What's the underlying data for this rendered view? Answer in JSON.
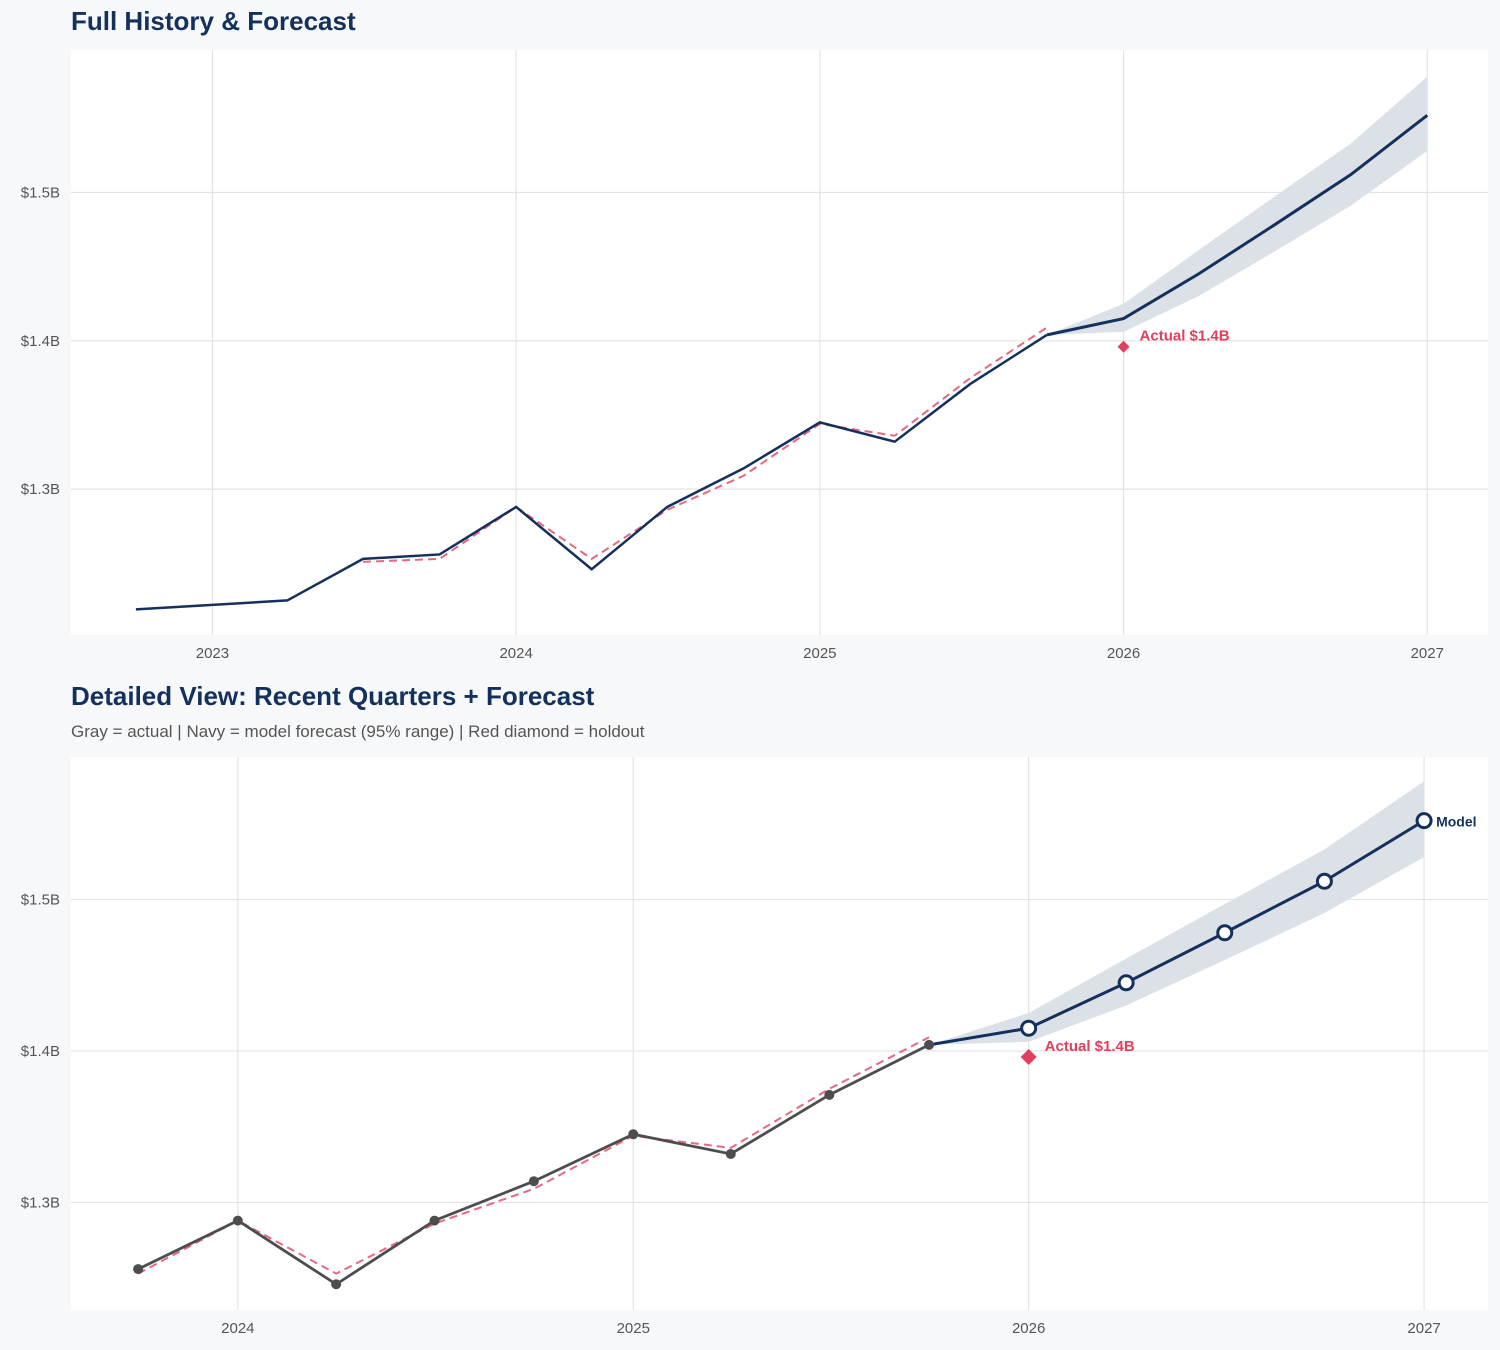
{
  "chart_data": [
    {
      "type": "line",
      "title": "Full History & Forecast",
      "subtitle": "",
      "xlim": [
        "2022-07-15",
        "2027-03-15"
      ],
      "ylim": [
        1.2017,
        1.596
      ],
      "x_ticks": [
        "2023",
        "2024",
        "2025",
        "2026",
        "2027"
      ],
      "y_ticks": [
        {
          "value": 1.3,
          "label": "$1.3B"
        },
        {
          "value": 1.4,
          "label": "$1.4B"
        },
        {
          "value": 1.5,
          "label": "$1.5B"
        }
      ],
      "grid": true,
      "actual_start": "2022-10-01",
      "actual_color": "#13315c",
      "actual_markers": false,
      "forecast_markers": false,
      "holdout_label": "Actual $1.4B",
      "model_label": ""
    },
    {
      "type": "line",
      "title": "Detailed View: Recent Quarters + Forecast",
      "subtitle": "Gray = actual  |  Navy = model forecast (95% range)  |  Red diamond = holdout",
      "xlim": [
        "2023-07-31",
        "2027-03-01"
      ],
      "ylim": [
        1.229,
        1.594
      ],
      "x_ticks": [
        "2024",
        "2025",
        "2026",
        "2027"
      ],
      "y_ticks": [
        {
          "value": 1.3,
          "label": "$1.3B"
        },
        {
          "value": 1.4,
          "label": "$1.4B"
        },
        {
          "value": 1.5,
          "label": "$1.5B"
        }
      ],
      "grid": true,
      "actual_start": "2023-10-01",
      "actual_color": "#4d4d4d",
      "actual_markers": true,
      "forecast_markers": true,
      "holdout_label": "Actual $1.4B",
      "model_label": "Model"
    }
  ],
  "series": {
    "unit": "$B",
    "actual": {
      "x": [
        "2022-10-01",
        "2023-01-01",
        "2023-04-01",
        "2023-07-01",
        "2023-10-01",
        "2024-01-01",
        "2024-04-01",
        "2024-07-01",
        "2024-10-01",
        "2025-01-01",
        "2025-04-01",
        "2025-07-01",
        "2025-10-01"
      ],
      "y": [
        1.219,
        1.222,
        1.225,
        1.253,
        1.256,
        1.288,
        1.246,
        1.288,
        1.314,
        1.345,
        1.332,
        1.371,
        1.404
      ]
    },
    "fitted": {
      "color": "#e8687f",
      "x": [
        "2023-07-01",
        "2023-10-01",
        "2024-01-01",
        "2024-04-01",
        "2024-07-01",
        "2024-10-01",
        "2025-01-01",
        "2025-04-01",
        "2025-07-01",
        "2025-10-01"
      ],
      "y": [
        1.251,
        1.253,
        1.288,
        1.253,
        1.286,
        1.309,
        1.344,
        1.336,
        1.375,
        1.409
      ]
    },
    "forecast": {
      "color": "#13315c",
      "x": [
        "2025-10-01",
        "2026-01-01",
        "2026-04-01",
        "2026-07-01",
        "2026-10-01",
        "2027-01-01"
      ],
      "y": [
        1.404,
        1.415,
        1.445,
        1.478,
        1.512,
        1.552
      ],
      "lower": [
        1.404,
        1.406,
        1.43,
        1.46,
        1.491,
        1.528
      ],
      "upper": [
        1.404,
        1.425,
        1.461,
        1.497,
        1.533,
        1.578
      ],
      "band_color": "#dce1e8"
    },
    "holdout": {
      "x": "2026-01-01",
      "y": 1.396,
      "color": "#e23f5f"
    }
  }
}
